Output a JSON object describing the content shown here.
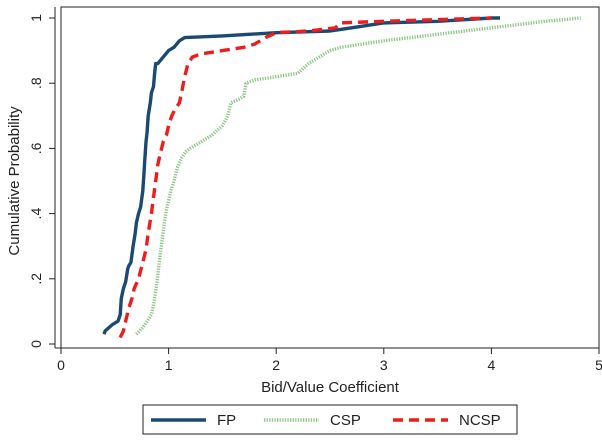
{
  "chart_data": {
    "type": "line",
    "title": "",
    "xlabel": "Bid/Value Coefficient",
    "ylabel": "Cumulative Probability",
    "xlim": [
      0,
      5
    ],
    "ylim": [
      0,
      1
    ],
    "x_ticks": [
      0,
      1,
      2,
      3,
      4,
      5
    ],
    "x_tick_labels": [
      "0",
      "1",
      "2",
      "3",
      "4",
      "5"
    ],
    "y_ticks": [
      0,
      0.2,
      0.4,
      0.6,
      0.8,
      1
    ],
    "y_tick_labels": [
      "0",
      ".2",
      ".4",
      ".6",
      ".8",
      "1"
    ],
    "grid": false,
    "legend_position": "bottom",
    "series": [
      {
        "name": "FP",
        "color": "#1a4a73",
        "style": "solid",
        "points": [
          [
            0.4,
            0.03
          ],
          [
            0.41,
            0.04
          ],
          [
            0.48,
            0.06
          ],
          [
            0.53,
            0.07
          ],
          [
            0.55,
            0.09
          ],
          [
            0.56,
            0.14
          ],
          [
            0.58,
            0.17
          ],
          [
            0.6,
            0.19
          ],
          [
            0.62,
            0.23
          ],
          [
            0.63,
            0.24
          ],
          [
            0.65,
            0.25
          ],
          [
            0.67,
            0.3
          ],
          [
            0.69,
            0.34
          ],
          [
            0.7,
            0.37
          ],
          [
            0.72,
            0.4
          ],
          [
            0.74,
            0.42
          ],
          [
            0.76,
            0.47
          ],
          [
            0.77,
            0.52
          ],
          [
            0.78,
            0.57
          ],
          [
            0.79,
            0.62
          ],
          [
            0.8,
            0.65
          ],
          [
            0.81,
            0.7
          ],
          [
            0.83,
            0.74
          ],
          [
            0.84,
            0.77
          ],
          [
            0.86,
            0.79
          ],
          [
            0.87,
            0.83
          ],
          [
            0.88,
            0.86
          ],
          [
            0.9,
            0.86
          ],
          [
            0.95,
            0.88
          ],
          [
            1.0,
            0.9
          ],
          [
            1.05,
            0.91
          ],
          [
            1.1,
            0.93
          ],
          [
            1.15,
            0.94
          ],
          [
            1.5,
            0.945
          ],
          [
            2.0,
            0.955
          ],
          [
            2.5,
            0.96
          ],
          [
            2.6,
            0.965
          ],
          [
            2.8,
            0.975
          ],
          [
            3.0,
            0.985
          ],
          [
            3.5,
            0.99
          ],
          [
            4.0,
            1.0
          ],
          [
            4.08,
            1.0
          ]
        ]
      },
      {
        "name": "CSP",
        "color": "#8dc887",
        "style": "dotted",
        "points": [
          [
            0.7,
            0.03
          ],
          [
            0.76,
            0.05
          ],
          [
            0.8,
            0.07
          ],
          [
            0.84,
            0.09
          ],
          [
            0.86,
            0.12
          ],
          [
            0.88,
            0.16
          ],
          [
            0.9,
            0.21
          ],
          [
            0.92,
            0.27
          ],
          [
            0.94,
            0.32
          ],
          [
            0.96,
            0.37
          ],
          [
            0.98,
            0.41
          ],
          [
            1.0,
            0.44
          ],
          [
            1.02,
            0.47
          ],
          [
            1.05,
            0.5
          ],
          [
            1.08,
            0.54
          ],
          [
            1.12,
            0.57
          ],
          [
            1.16,
            0.59
          ],
          [
            1.2,
            0.6
          ],
          [
            1.3,
            0.62
          ],
          [
            1.4,
            0.64
          ],
          [
            1.5,
            0.67
          ],
          [
            1.55,
            0.7
          ],
          [
            1.58,
            0.74
          ],
          [
            1.65,
            0.75
          ],
          [
            1.7,
            0.76
          ],
          [
            1.72,
            0.8
          ],
          [
            1.8,
            0.81
          ],
          [
            2.0,
            0.82
          ],
          [
            2.2,
            0.83
          ],
          [
            2.3,
            0.86
          ],
          [
            2.5,
            0.9
          ],
          [
            2.6,
            0.91
          ],
          [
            3.0,
            0.93
          ],
          [
            3.5,
            0.95
          ],
          [
            4.0,
            0.97
          ],
          [
            4.5,
            0.99
          ],
          [
            4.83,
            1.0
          ]
        ]
      },
      {
        "name": "NCSP",
        "color": "#ee1c1c",
        "style": "dashed",
        "points": [
          [
            0.55,
            0.02
          ],
          [
            0.58,
            0.04
          ],
          [
            0.6,
            0.07
          ],
          [
            0.63,
            0.11
          ],
          [
            0.66,
            0.14
          ],
          [
            0.68,
            0.17
          ],
          [
            0.72,
            0.2
          ],
          [
            0.76,
            0.25
          ],
          [
            0.79,
            0.29
          ],
          [
            0.81,
            0.34
          ],
          [
            0.84,
            0.4
          ],
          [
            0.86,
            0.45
          ],
          [
            0.88,
            0.5
          ],
          [
            0.9,
            0.55
          ],
          [
            0.92,
            0.58
          ],
          [
            0.95,
            0.62
          ],
          [
            0.98,
            0.64
          ],
          [
            1.0,
            0.67
          ],
          [
            1.03,
            0.7
          ],
          [
            1.06,
            0.72
          ],
          [
            1.1,
            0.74
          ],
          [
            1.12,
            0.77
          ],
          [
            1.15,
            0.82
          ],
          [
            1.18,
            0.86
          ],
          [
            1.22,
            0.88
          ],
          [
            1.3,
            0.89
          ],
          [
            1.5,
            0.9
          ],
          [
            1.7,
            0.91
          ],
          [
            1.8,
            0.92
          ],
          [
            1.9,
            0.94
          ],
          [
            2.0,
            0.955
          ],
          [
            2.3,
            0.96
          ],
          [
            2.55,
            0.97
          ],
          [
            2.6,
            0.985
          ],
          [
            3.0,
            0.99
          ],
          [
            3.5,
            0.995
          ],
          [
            4.0,
            1.0
          ]
        ]
      }
    ]
  }
}
